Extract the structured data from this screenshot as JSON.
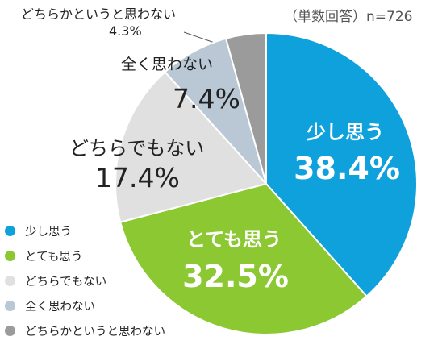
{
  "note": "（単数回答）n=726",
  "chart_data": {
    "type": "pie",
    "title": "",
    "slices": [
      {
        "name": "少し思う",
        "value": 38.4,
        "label": "38.4%",
        "color": "#0ea1dc"
      },
      {
        "name": "とても思う",
        "value": 32.5,
        "label": "32.5%",
        "color": "#8bc832"
      },
      {
        "name": "どちらでもない",
        "value": 17.4,
        "label": "17.4%",
        "color": "#e0e0e0"
      },
      {
        "name": "全く思わない",
        "value": 7.4,
        "label": "7.4%",
        "color": "#b9c8d4"
      },
      {
        "name": "どちらかというと思わない",
        "value": 4.3,
        "label": "4.3%",
        "color": "#9b9b9b"
      }
    ],
    "legend_position": "bottom-left"
  }
}
